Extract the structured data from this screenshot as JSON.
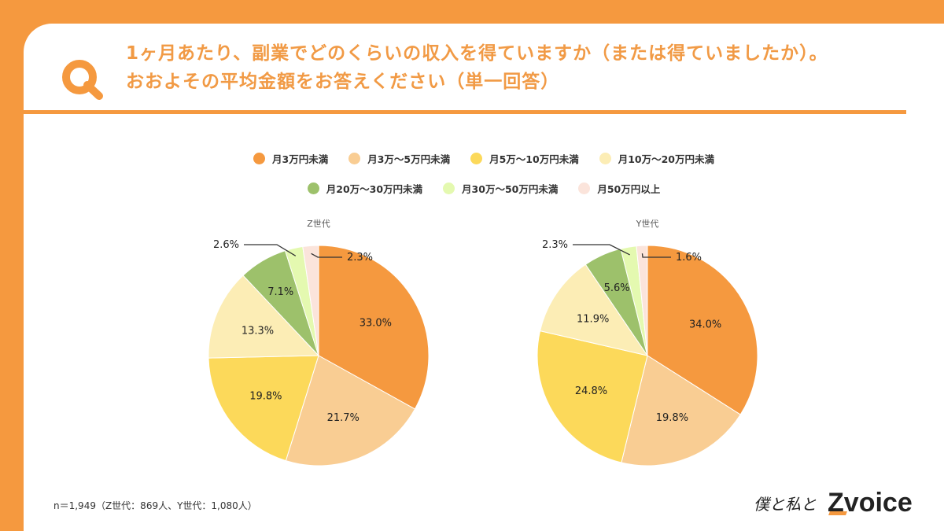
{
  "header": {
    "q_letter": "Q",
    "title_line1": "1ヶ月あたり、副業でどのくらいの収入を得ていますか（または得ていましたか）。",
    "title_line2": "おおよその平均金額をお答えください（単一回答）"
  },
  "colors": {
    "background": "#F5993F",
    "title": "#F19A45",
    "categories": [
      "#F5993F",
      "#F9CD93",
      "#FCD95A",
      "#FCEDB5",
      "#9DC16B",
      "#E4F9B0",
      "#FBE4DB"
    ]
  },
  "chart_data": {
    "type": "pie",
    "categories": [
      "月3万円未満",
      "月3万～5万円未満",
      "月5万～10万円未満",
      "月10万～20万円未満",
      "月20万～30万円未満",
      "月30万～50万円未満",
      "月50万円以上"
    ],
    "legend_placement": "top",
    "charts": [
      {
        "title": "Z世代",
        "values": [
          33.0,
          21.7,
          19.8,
          13.3,
          7.1,
          2.6,
          2.3
        ],
        "labels": [
          "33.0%",
          "21.7%",
          "19.8%",
          "13.3%",
          "7.1%",
          "2.6%",
          "2.3%"
        ]
      },
      {
        "title": "Y世代",
        "values": [
          34.0,
          19.8,
          24.8,
          11.9,
          5.6,
          2.3,
          1.6
        ],
        "labels": [
          "34.0%",
          "19.8%",
          "24.8%",
          "11.9%",
          "5.6%",
          "2.3%",
          "1.6%"
        ]
      }
    ]
  },
  "footnote": "n＝1,949（Z世代：869人、Y世代：1,080人）",
  "logo": {
    "script_text": "僕と私と",
    "brand_z": "Z",
    "brand_text": "voice"
  }
}
